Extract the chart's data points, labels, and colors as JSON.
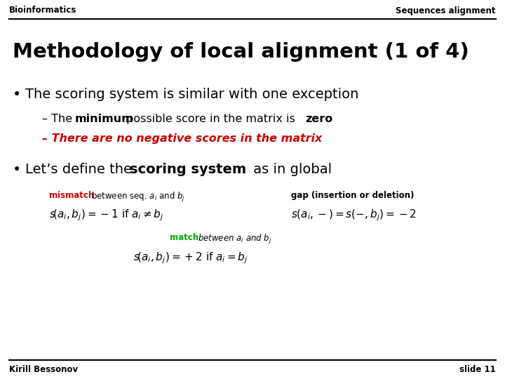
{
  "bg_color": "#ffffff",
  "header_left": "Bioinformatics",
  "header_right": "Sequences alignment",
  "title": "Methodology of local alignment (1 of 4)",
  "footer_left": "Kirill Bessonov",
  "footer_right": "slide 11",
  "bullet1": "The scoring system is similar with one exception",
  "sub1_pre": "– The ",
  "sub1_bold": "minimum",
  "sub1_mid": " possible score in the matrix is ",
  "sub1_bold2": "zero",
  "sub2": "– There are no negative scores in the matrix",
  "sub2_color": "#cc0000",
  "bullet2_pre": "Let’s define the ",
  "bullet2_bold": "scoring system",
  "bullet2_post": " as in global",
  "mismatch_color": "#cc0000",
  "match_color": "#00aa00",
  "gap_color": "#000000",
  "eq_color": "#000000"
}
